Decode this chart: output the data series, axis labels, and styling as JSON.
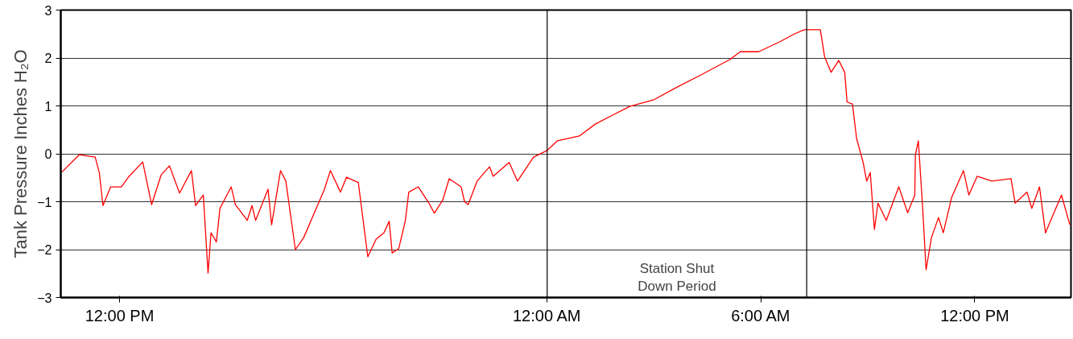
{
  "chart_data": {
    "type": "line",
    "ylabel": "Tank Pressure Inches H₂O",
    "x": [
      "2000-01-01T10:23",
      "2000-01-01T10:52",
      "2000-01-01T11:19",
      "2000-01-01T11:26",
      "2000-01-01T11:32",
      "2000-01-01T11:45",
      "2000-01-01T12:03",
      "2000-01-01T12:16",
      "2000-01-01T12:39",
      "2000-01-01T12:54",
      "2000-01-01T13:10",
      "2000-01-01T13:24",
      "2000-01-01T13:41",
      "2000-01-01T14:01",
      "2000-01-01T14:08",
      "2000-01-01T14:21",
      "2000-01-01T14:29",
      "2000-01-01T14:34",
      "2000-01-01T14:43",
      "2000-01-01T14:49",
      "2000-01-01T15:08",
      "2000-01-01T15:15",
      "2000-01-01T15:35",
      "2000-01-01T15:43",
      "2000-01-01T15:49",
      "2000-01-01T16:10",
      "2000-01-01T16:16",
      "2000-01-01T16:31",
      "2000-01-01T16:40",
      "2000-01-01T16:56",
      "2000-01-01T17:10",
      "2000-01-01T17:45",
      "2000-01-01T17:55",
      "2000-01-01T18:12",
      "2000-01-01T18:22",
      "2000-01-01T18:42",
      "2000-01-01T18:58",
      "2000-01-01T19:12",
      "2000-01-01T19:25",
      "2000-01-01T19:34",
      "2000-01-01T19:39",
      "2000-01-01T19:50",
      "2000-01-01T20:01",
      "2000-01-01T20:07",
      "2000-01-01T20:23",
      "2000-01-01T20:41",
      "2000-01-01T20:50",
      "2000-01-01T21:04",
      "2000-01-01T21:15",
      "2000-01-01T21:35",
      "2000-01-01T21:41",
      "2000-01-01T21:47",
      "2000-01-01T22:02",
      "2000-01-01T22:23",
      "2000-01-01T22:29",
      "2000-01-01T22:56",
      "2000-01-01T23:10",
      "2000-01-01T23:37",
      "2000-01-02T00:00",
      "2000-01-02T00:17",
      "2000-01-02T00:54",
      "2000-01-02T01:21",
      "2000-01-02T01:52",
      "2000-01-02T02:19",
      "2000-01-02T03:00",
      "2000-01-02T03:37",
      "2000-01-02T04:21",
      "2000-01-02T05:08",
      "2000-01-02T05:25",
      "2000-01-02T05:56",
      "2000-01-02T06:32",
      "2000-01-02T06:56",
      "2000-01-02T07:13",
      "2000-01-02T07:40",
      "2000-01-02T07:47",
      "2000-01-02T07:58",
      "2000-01-02T08:11",
      "2000-01-02T08:21",
      "2000-01-02T08:25",
      "2000-01-02T08:34",
      "2000-01-02T08:41",
      "2000-01-02T08:52",
      "2000-01-02T08:58",
      "2000-01-02T09:04",
      "2000-01-02T09:11",
      "2000-01-02T09:17",
      "2000-01-02T09:31",
      "2000-01-02T09:52",
      "2000-01-02T10:07",
      "2000-01-02T10:19",
      "2000-01-02T10:20",
      "2000-01-02T10:25",
      "2000-01-02T10:32",
      "2000-01-02T10:38",
      "2000-01-02T10:47",
      "2000-01-02T10:59",
      "2000-01-02T11:07",
      "2000-01-02T11:21",
      "2000-01-02T11:41",
      "2000-01-02T11:50",
      "2000-01-02T12:04",
      "2000-01-02T12:29",
      "2000-01-02T13:01",
      "2000-01-02T13:08",
      "2000-01-02T13:28",
      "2000-01-02T13:36",
      "2000-01-02T13:49",
      "2000-01-02T13:59",
      "2000-01-02T14:13",
      "2000-01-02T14:26",
      "2000-01-02T14:40"
    ],
    "series": [
      {
        "color": "#ff0000",
        "values": [
          -0.38,
          -0.02,
          -0.07,
          -0.4,
          -1.08,
          -0.69,
          -0.69,
          -0.47,
          -0.17,
          -1.06,
          -0.44,
          -0.25,
          -0.82,
          -0.35,
          -1.08,
          -0.86,
          -2.49,
          -1.65,
          -1.84,
          -1.14,
          -0.69,
          -1.06,
          -1.39,
          -1.08,
          -1.39,
          -0.74,
          -1.48,
          -0.35,
          -0.57,
          -2.0,
          -1.75,
          -0.74,
          -0.35,
          -0.8,
          -0.49,
          -0.6,
          -2.15,
          -1.78,
          -1.65,
          -1.41,
          -2.07,
          -1.98,
          -1.41,
          -0.8,
          -0.69,
          -1.03,
          -1.24,
          -0.97,
          -0.52,
          -0.69,
          -1.0,
          -1.06,
          -0.57,
          -0.27,
          -0.47,
          -0.18,
          -0.57,
          -0.07,
          0.07,
          0.27,
          0.37,
          0.62,
          0.82,
          0.99,
          1.13,
          1.38,
          1.66,
          1.97,
          2.13,
          2.13,
          2.34,
          2.5,
          2.59,
          2.59,
          2.03,
          1.7,
          1.95,
          1.7,
          1.08,
          1.04,
          0.32,
          -0.18,
          -0.57,
          -0.39,
          -1.58,
          -1.03,
          -1.39,
          -0.69,
          -1.23,
          -0.86,
          -0.02,
          0.27,
          -1.08,
          -2.42,
          -1.75,
          -1.33,
          -1.65,
          -0.91,
          -0.35,
          -0.86,
          -0.47,
          -0.57,
          -0.52,
          -1.03,
          -0.8,
          -1.14,
          -0.69,
          -1.65,
          -1.24,
          -0.86,
          -1.48
        ]
      }
    ],
    "xlim": [
      "2000-01-01T10:21",
      "2000-01-02T14:42"
    ],
    "xticks": [
      {
        "value": "2000-01-01T12:00",
        "label": "12:00 PM"
      },
      {
        "value": "2000-01-02T00:00",
        "label": "12:00 AM"
      },
      {
        "value": "2000-01-02T06:00",
        "label": "6:00 AM"
      },
      {
        "value": "2000-01-02T12:00",
        "label": "12:00 PM"
      }
    ],
    "ylim": [
      -3,
      3
    ],
    "yticks": [
      -3,
      -2,
      -1,
      0,
      1,
      2,
      3
    ],
    "grid": "y",
    "ref_lines": [
      {
        "axis": "x",
        "value": "2000-01-02T00:00",
        "color": "#000000"
      },
      {
        "axis": "x",
        "value": "2000-01-02T07:17",
        "color": "#000000"
      }
    ],
    "annotations": [
      "Station Shut\nDown Period"
    ]
  }
}
